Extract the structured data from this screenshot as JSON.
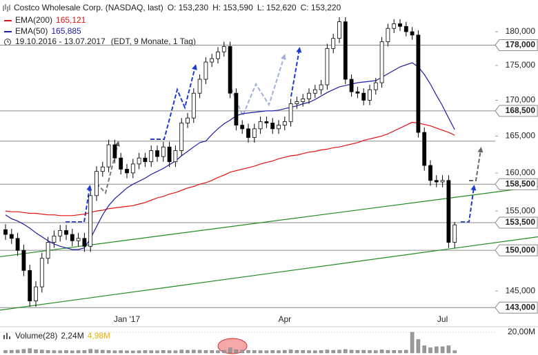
{
  "chart_data": {
    "type": "candlestick",
    "title": "Costco Wholesale Corp. (NASDAQ, last)",
    "quote_labels": [
      "O: 153,230",
      "H: 153,590",
      "L: 152,620",
      "C: 153,220"
    ],
    "period": "19.10.2016 - 13.07.2017",
    "period_note": "(EDT, 9 Monate, 1 Tag)",
    "categories": [
      null,
      null,
      null,
      null,
      null,
      null,
      null,
      null,
      null,
      null,
      null,
      null,
      null,
      null,
      null,
      null,
      null,
      null,
      null,
      null,
      "Jan '17",
      null,
      null,
      null,
      null,
      null,
      null,
      null,
      null,
      null,
      null,
      null,
      null,
      null,
      null,
      null,
      null,
      null,
      null,
      null,
      null,
      null,
      null,
      null,
      null,
      null,
      "Apr",
      null,
      null,
      null,
      null,
      null,
      null,
      null,
      null,
      null,
      null,
      null,
      null,
      null,
      null,
      null,
      null,
      null,
      null,
      null,
      null,
      null,
      null,
      null,
      null,
      null,
      "Jul",
      null,
      null
    ],
    "open": [
      152600,
      152000,
      151500,
      150000,
      147500,
      143800,
      145500,
      149000,
      151000,
      151800,
      152500,
      152000,
      151200,
      151500,
      150500,
      157000,
      160200,
      160800,
      163800,
      162000,
      160500,
      160000,
      161200,
      162000,
      161500,
      163000,
      162200,
      163500,
      161500,
      163000,
      166800,
      167500,
      171000,
      173000,
      175500,
      176000,
      177000,
      177800,
      171000,
      166500,
      166000,
      164800,
      166000,
      167000,
      166800,
      166000,
      166500,
      167000,
      169500,
      169800,
      170200,
      171000,
      171500,
      172200,
      177500,
      179000,
      181500,
      173000,
      171200,
      171000,
      170000,
      171500,
      172500,
      178500,
      180500,
      181200,
      180800,
      180000,
      179500,
      165500,
      161000,
      159000,
      158800,
      159000,
      151000
    ],
    "high": [
      153300,
      152700,
      152200,
      150700,
      148200,
      146200,
      149700,
      151700,
      152500,
      153200,
      153200,
      152700,
      152200,
      152200,
      157700,
      160900,
      161500,
      164500,
      164500,
      162700,
      161200,
      161900,
      162700,
      162700,
      163700,
      163700,
      164200,
      164200,
      163700,
      167500,
      168200,
      171700,
      173700,
      176200,
      176700,
      177700,
      178500,
      178500,
      171700,
      167200,
      166700,
      166700,
      167700,
      167700,
      167500,
      167200,
      167700,
      170200,
      170500,
      170900,
      171700,
      172200,
      172900,
      178200,
      179700,
      182200,
      182200,
      173700,
      171900,
      171700,
      172200,
      173200,
      179200,
      181200,
      181900,
      181900,
      181500,
      180700,
      180200,
      166200,
      161700,
      159700,
      159700,
      159700,
      153590
    ],
    "low": [
      151300,
      150800,
      149300,
      146800,
      143100,
      143100,
      144800,
      148300,
      150300,
      151100,
      151300,
      150500,
      150500,
      149800,
      149800,
      156300,
      159500,
      160100,
      161300,
      159800,
      159300,
      159300,
      160500,
      160800,
      160800,
      161500,
      161500,
      160800,
      160800,
      162300,
      166100,
      166800,
      170300,
      172300,
      174800,
      175300,
      176300,
      170300,
      165800,
      165300,
      164100,
      164100,
      165300,
      166100,
      165300,
      165300,
      165800,
      166300,
      168800,
      169100,
      169500,
      170300,
      170800,
      171500,
      176800,
      178300,
      172300,
      170500,
      170300,
      169300,
      169300,
      170800,
      171800,
      177800,
      179800,
      180100,
      179300,
      178800,
      164800,
      160300,
      158300,
      158100,
      158100,
      150300,
      150300
    ],
    "close": [
      152000,
      151500,
      150000,
      147500,
      143800,
      145500,
      149000,
      151000,
      151800,
      152500,
      152000,
      151200,
      151500,
      150500,
      157000,
      160200,
      160800,
      163800,
      162000,
      160500,
      160000,
      161200,
      162000,
      161500,
      163000,
      162200,
      163500,
      161500,
      163000,
      166800,
      167500,
      171000,
      173000,
      175500,
      176000,
      177000,
      177800,
      171000,
      166500,
      166000,
      164800,
      166000,
      167000,
      166800,
      166000,
      166500,
      167000,
      169500,
      169800,
      170200,
      171000,
      171500,
      172200,
      177500,
      179000,
      181500,
      173000,
      171200,
      171000,
      170000,
      171500,
      172500,
      178500,
      180500,
      181200,
      180800,
      180000,
      179500,
      165500,
      161000,
      159000,
      158800,
      159000,
      151000,
      153220
    ],
    "up_color": "#ffffff",
    "down_color": "#000000",
    "series": [
      {
        "name": "EMA(200)",
        "value_label": "165,121",
        "color": "#e01010",
        "values": [
          155000,
          154900,
          154900,
          154800,
          154700,
          154700,
          154600,
          154500,
          154500,
          154400,
          154400,
          154400,
          154500,
          154600,
          154800,
          155000,
          155100,
          155300,
          155400,
          155500,
          155600,
          155700,
          155900,
          156100,
          156400,
          156700,
          156900,
          157200,
          157400,
          157700,
          158000,
          158200,
          158500,
          158700,
          159000,
          159400,
          159700,
          160100,
          160300,
          160500,
          160700,
          160900,
          161200,
          161400,
          161600,
          161900,
          162100,
          162300,
          162400,
          162600,
          162800,
          162900,
          163100,
          163200,
          163400,
          163500,
          163700,
          163900,
          164100,
          164400,
          164600,
          164800,
          165000,
          165300,
          165700,
          166100,
          166500,
          166900,
          166800,
          166600,
          166400,
          166100,
          165800,
          165500,
          165121
        ]
      },
      {
        "name": "EMA(50)",
        "value_label": "165,885",
        "color": "#1c1ca8",
        "values": [
          154500,
          154000,
          153700,
          153300,
          152800,
          152200,
          151700,
          151200,
          150800,
          150500,
          150300,
          150100,
          150100,
          150300,
          151500,
          153000,
          154500,
          155700,
          156600,
          157300,
          158000,
          158500,
          158900,
          159300,
          159800,
          160200,
          160600,
          161100,
          161600,
          162300,
          162900,
          163500,
          164100,
          164300,
          165200,
          166000,
          166700,
          167200,
          167800,
          168100,
          168200,
          168300,
          168400,
          168500,
          168500,
          168600,
          168800,
          169000,
          169200,
          169500,
          169700,
          170100,
          170600,
          171100,
          171500,
          171900,
          172100,
          172300,
          172500,
          172600,
          172700,
          172800,
          173300,
          173800,
          174300,
          174800,
          175100,
          175400,
          174800,
          173700,
          172300,
          170700,
          169200,
          167500,
          165885
        ]
      }
    ],
    "ylim": [
      142200,
      184400
    ],
    "log": true,
    "yticks": [
      {
        "value": 145000,
        "label": "145,000"
      },
      {
        "value": 150000,
        "label": "150,000"
      },
      {
        "value": 155000,
        "label": "155,000"
      },
      {
        "value": 160000,
        "label": "160,000"
      },
      {
        "value": 165000,
        "label": "165,000"
      },
      {
        "value": 170000,
        "label": "170,000"
      },
      {
        "value": 175000,
        "label": "175,000"
      },
      {
        "value": 180000,
        "label": "180,000"
      }
    ],
    "levels": [
      {
        "value": 178000,
        "label": "178,000"
      },
      {
        "value": 168500,
        "label": "168,500"
      },
      {
        "value": 164300,
        "label": null
      },
      {
        "value": 158500,
        "label": "158,500"
      },
      {
        "value": 153500,
        "label": "153,500"
      },
      {
        "value": 150000,
        "label": "150,000"
      },
      {
        "value": 143000,
        "label": "143,000"
      }
    ],
    "trendlines": [
      {
        "color": "#1f8a1f",
        "values": [
          142700,
          151700
        ]
      },
      {
        "color": "#1f8a1f",
        "values": [
          149200,
          158200
        ]
      }
    ],
    "volume": {
      "name": "Volume(28)",
      "last_label": "2,24M",
      "average_label": "4,98M",
      "average_color": "#e8b000",
      "color": "#9a9a9a",
      "values": [
        2.4,
        2.6,
        2.8,
        3.5,
        4.2,
        3.2,
        2.9,
        2.5,
        2.3,
        2.2,
        2.4,
        2.1,
        2.3,
        2.5,
        3.6,
        3.0,
        2.7,
        2.4,
        2.2,
        2.3,
        2.1,
        2.0,
        2.2,
        2.4,
        2.3,
        2.2,
        2.5,
        2.3,
        2.2,
        2.9,
        2.6,
        2.8,
        2.7,
        2.5,
        2.4,
        2.3,
        2.6,
        4.9,
        3.1,
        2.7,
        2.5,
        2.4,
        2.3,
        2.2,
        2.4,
        2.3,
        2.6,
        3.0,
        2.5,
        2.4,
        2.3,
        2.2,
        2.4,
        2.9,
        2.6,
        2.8,
        3.4,
        2.7,
        2.5,
        2.6,
        2.4,
        2.3,
        3.0,
        2.6,
        2.5,
        2.4,
        2.7,
        20,
        13,
        7,
        5,
        6,
        6,
        7,
        2.24
      ],
      "ylim": [
        0,
        20
      ],
      "yticks": [
        {
          "value": 20,
          "label": "20,00M"
        }
      ]
    }
  }
}
